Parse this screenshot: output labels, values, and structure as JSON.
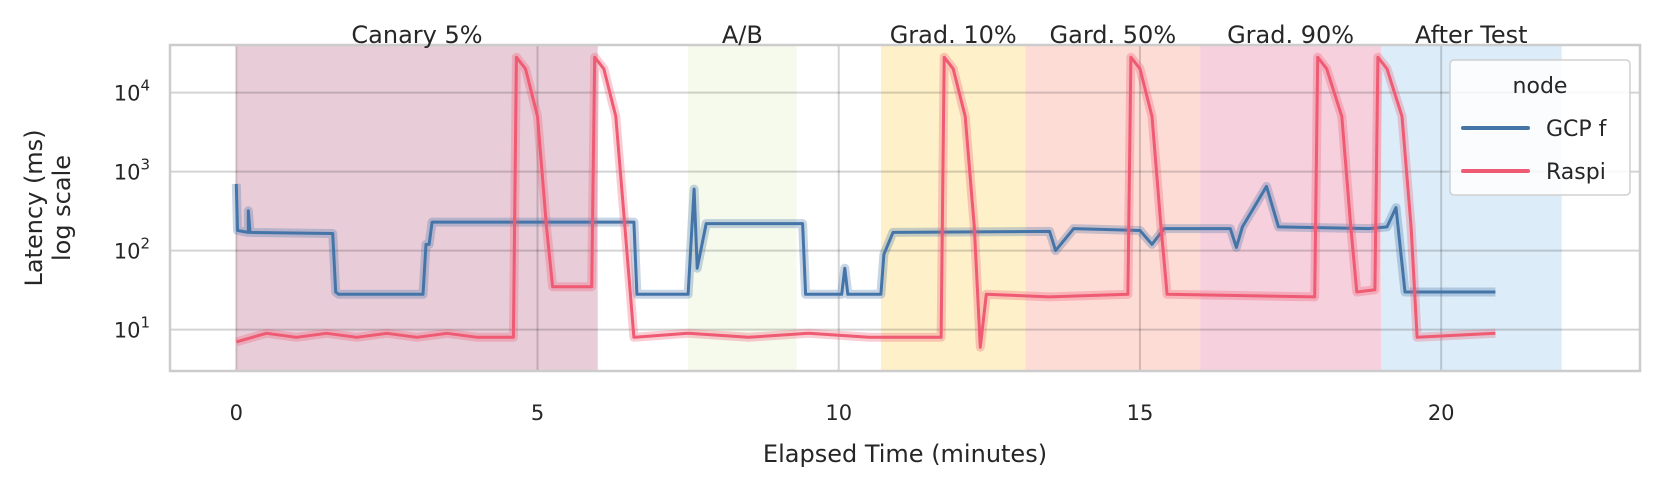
{
  "chart_data": {
    "type": "line",
    "title": "",
    "xlabel": "Elapsed Time (minutes)",
    "ylabel": "Latency (ms)",
    "ylabel2": "log scale",
    "yscale": "log",
    "xlim": [
      -1.1,
      23.3
    ],
    "ylim": [
      3,
      40000
    ],
    "x_ticks": [
      {
        "value": 0,
        "label": "0"
      },
      {
        "value": 5,
        "label": "5"
      },
      {
        "value": 10,
        "label": "10"
      },
      {
        "value": 15,
        "label": "15"
      },
      {
        "value": 20,
        "label": "20"
      }
    ],
    "y_ticks": [
      {
        "value": 10,
        "base": "10",
        "exp": "1"
      },
      {
        "value": 100,
        "base": "10",
        "exp": "2"
      },
      {
        "value": 1000,
        "base": "10",
        "exp": "3"
      },
      {
        "value": 10000,
        "base": "10",
        "exp": "4"
      }
    ],
    "grid": true,
    "phases": [
      {
        "label": "Canary 5%",
        "start": 0.0,
        "end": 6.0,
        "color": "#b35a82",
        "opacity": 0.3
      },
      {
        "label": "A/B",
        "start": 7.5,
        "end": 9.3,
        "color": "#d6ecb4",
        "opacity": 0.25
      },
      {
        "label": "Grad. 10%",
        "start": 10.7,
        "end": 13.1,
        "color": "#fbd864",
        "opacity": 0.35
      },
      {
        "label": "Gard. 50%",
        "start": 13.1,
        "end": 16.0,
        "color": "#fb8c78",
        "opacity": 0.3
      },
      {
        "label": "Grad. 90%",
        "start": 16.0,
        "end": 19.0,
        "color": "#e1628c",
        "opacity": 0.3
      },
      {
        "label": "After Test",
        "start": 19.0,
        "end": 22.0,
        "color": "#8cc0e8",
        "opacity": 0.3
      }
    ],
    "legend": {
      "title": "node",
      "position": "top-right"
    },
    "series": [
      {
        "name": "GCP f",
        "color": "#4575a8",
        "points": [
          [
            0.0,
            700
          ],
          [
            0.02,
            180
          ],
          [
            0.2,
            170
          ],
          [
            0.2,
            320
          ],
          [
            0.23,
            170
          ],
          [
            1.6,
            165
          ],
          [
            1.65,
            30
          ],
          [
            1.7,
            28
          ],
          [
            3.1,
            28
          ],
          [
            3.15,
            120
          ],
          [
            3.2,
            120
          ],
          [
            3.25,
            230
          ],
          [
            6.6,
            230
          ],
          [
            6.65,
            28
          ],
          [
            7.5,
            28
          ],
          [
            7.6,
            600
          ],
          [
            7.65,
            60
          ],
          [
            7.8,
            220
          ],
          [
            9.4,
            220
          ],
          [
            9.45,
            28
          ],
          [
            10.05,
            28
          ],
          [
            10.1,
            60
          ],
          [
            10.15,
            28
          ],
          [
            10.7,
            28
          ],
          [
            10.75,
            90
          ],
          [
            10.9,
            170
          ],
          [
            13.5,
            175
          ],
          [
            13.6,
            100
          ],
          [
            13.9,
            190
          ],
          [
            15.0,
            180
          ],
          [
            15.2,
            120
          ],
          [
            15.4,
            190
          ],
          [
            16.5,
            190
          ],
          [
            16.6,
            110
          ],
          [
            16.7,
            200
          ],
          [
            17.1,
            650
          ],
          [
            17.3,
            200
          ],
          [
            18.8,
            190
          ],
          [
            19.1,
            200
          ],
          [
            19.25,
            350
          ],
          [
            19.4,
            30
          ],
          [
            20.9,
            30
          ]
        ]
      },
      {
        "name": "Raspi",
        "color": "#ee5b73",
        "points": [
          [
            0.0,
            7
          ],
          [
            0.5,
            9
          ],
          [
            1.0,
            8
          ],
          [
            1.5,
            9
          ],
          [
            2.0,
            8
          ],
          [
            2.5,
            9
          ],
          [
            3.0,
            8
          ],
          [
            3.5,
            9
          ],
          [
            4.0,
            8
          ],
          [
            4.6,
            8
          ],
          [
            4.65,
            28000
          ],
          [
            4.8,
            20000
          ],
          [
            5.0,
            5000
          ],
          [
            5.15,
            200
          ],
          [
            5.25,
            35
          ],
          [
            5.9,
            35
          ],
          [
            5.95,
            28000
          ],
          [
            6.1,
            20000
          ],
          [
            6.3,
            5000
          ],
          [
            6.45,
            200
          ],
          [
            6.6,
            8
          ],
          [
            7.5,
            9
          ],
          [
            8.5,
            8
          ],
          [
            9.5,
            9
          ],
          [
            10.5,
            8
          ],
          [
            11.7,
            8
          ],
          [
            11.75,
            28000
          ],
          [
            11.9,
            20000
          ],
          [
            12.1,
            5000
          ],
          [
            12.25,
            200
          ],
          [
            12.35,
            6
          ],
          [
            12.45,
            28
          ],
          [
            13.5,
            26
          ],
          [
            14.8,
            28
          ],
          [
            14.85,
            28000
          ],
          [
            15.0,
            20000
          ],
          [
            15.2,
            5000
          ],
          [
            15.35,
            200
          ],
          [
            15.45,
            28
          ],
          [
            17.9,
            26
          ],
          [
            17.95,
            28000
          ],
          [
            18.1,
            20000
          ],
          [
            18.35,
            5000
          ],
          [
            18.5,
            200
          ],
          [
            18.6,
            30
          ],
          [
            18.9,
            32
          ],
          [
            18.95,
            28000
          ],
          [
            19.1,
            20000
          ],
          [
            19.35,
            5000
          ],
          [
            19.5,
            200
          ],
          [
            19.6,
            8
          ],
          [
            20.9,
            9
          ]
        ]
      }
    ]
  }
}
